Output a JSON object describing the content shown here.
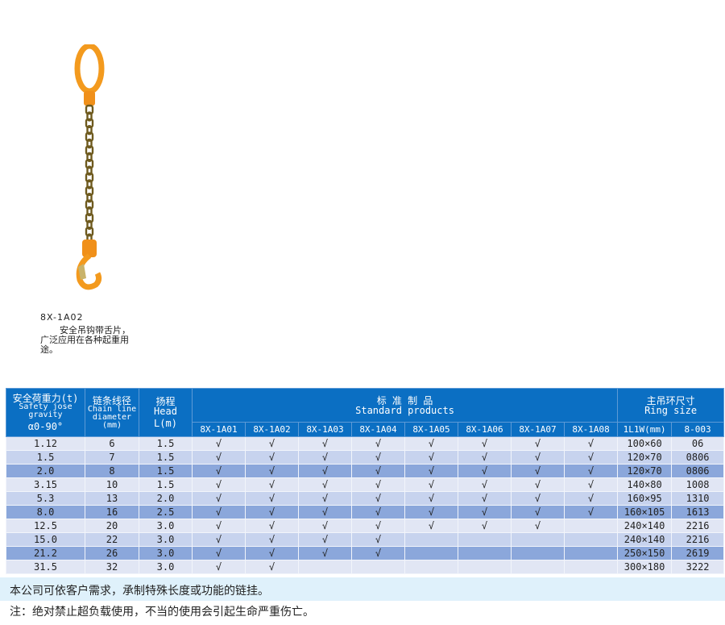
{
  "product": {
    "model": "8X-1A02",
    "description": "安全吊钩带舌片，广泛应用在各种起重用途。",
    "image": "single-leg-chain-sling-with-hook"
  },
  "table": {
    "headers": {
      "load": {
        "cn": "安全荷重力(t)",
        "en": "Safety jose gravity",
        "angle": "α0-90°"
      },
      "diameter": {
        "cn": "链条线径",
        "en": "Chain line diameter",
        "unit": "(mm)"
      },
      "head": {
        "cn": "扬程",
        "en": "Head",
        "unit": "L(m)"
      },
      "standard": {
        "cn": "标 准 制 品",
        "en": "Standard products"
      },
      "ring": {
        "cn": "主吊环尺寸",
        "en": "Ring size"
      }
    },
    "product_codes": [
      "8X-1A01",
      "8X-1A02",
      "8X-1A03",
      "8X-1A04",
      "8X-1A05",
      "8X-1A06",
      "8X-1A07",
      "8X-1A08"
    ],
    "ring_subheaders": [
      "1L1W(mm)",
      "8-003"
    ],
    "check_symbol": "√",
    "rows": [
      {
        "load": "1.12",
        "diameter": "6",
        "head": "1.5",
        "checks": 8,
        "ring": "100×60",
        "code": "06"
      },
      {
        "load": "1.5",
        "diameter": "7",
        "head": "1.5",
        "checks": 8,
        "ring": "120×70",
        "code": "0806"
      },
      {
        "load": "2.0",
        "diameter": "8",
        "head": "1.5",
        "checks": 8,
        "ring": "120×70",
        "code": "0806"
      },
      {
        "load": "3.15",
        "diameter": "10",
        "head": "1.5",
        "checks": 8,
        "ring": "140×80",
        "code": "1008"
      },
      {
        "load": "5.3",
        "diameter": "13",
        "head": "2.0",
        "checks": 8,
        "ring": "160×95",
        "code": "1310"
      },
      {
        "load": "8.0",
        "diameter": "16",
        "head": "2.5",
        "checks": 8,
        "ring": "160×105",
        "code": "1613"
      },
      {
        "load": "12.5",
        "diameter": "20",
        "head": "3.0",
        "checks": 7,
        "ring": "240×140",
        "code": "2216"
      },
      {
        "load": "15.0",
        "diameter": "22",
        "head": "3.0",
        "checks": 4,
        "ring": "240×140",
        "code": "2216"
      },
      {
        "load": "21.2",
        "diameter": "26",
        "head": "3.0",
        "checks": 4,
        "ring": "250×150",
        "code": "2619"
      },
      {
        "load": "31.5",
        "diameter": "32",
        "head": "3.0",
        "checks": 2,
        "ring": "300×180",
        "code": "3222"
      }
    ]
  },
  "notes": [
    "本公司可依客户需求，承制特殊长度或功能的链挂。",
    "注：绝对禁止超负载使用，不当的使用会引起生命严重伤亡。"
  ],
  "colors": {
    "header": "#0b6fc3",
    "row_light": "#e1e6f4",
    "row_mid": "#c7d3ee",
    "row_dark": "#8ba7db",
    "chain_orange": "#f39a1e"
  }
}
